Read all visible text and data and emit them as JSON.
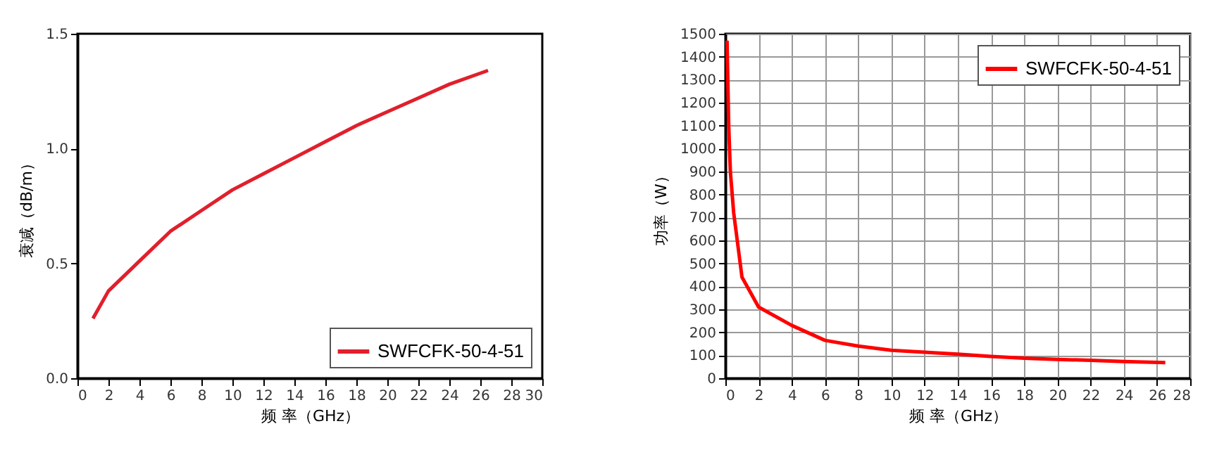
{
  "chart_data": [
    {
      "type": "line",
      "xlabel": "频 率（GHz）",
      "ylabel": "衰减（dB/m）",
      "xlim": [
        0,
        30
      ],
      "xticks": [
        0,
        2,
        4,
        6,
        8,
        10,
        12,
        14,
        16,
        18,
        20,
        22,
        24,
        26,
        28,
        30
      ],
      "ylim": [
        0,
        1.5
      ],
      "yticks": [
        {
          "value": 0,
          "label": "0.0"
        },
        {
          "value": 0.5,
          "label": "0.5"
        },
        {
          "value": 1,
          "label": "1.0"
        },
        {
          "value": 1.5,
          "label": "1.5"
        }
      ],
      "grid": false,
      "legend": "bottom right",
      "line_style": "solid",
      "marker": "none",
      "series": [
        {
          "name": "SWFCFK-50-4-51",
          "color": "#e0202c",
          "x": [
            1,
            2,
            4,
            6,
            8,
            10,
            12,
            14,
            16,
            18,
            20,
            22,
            24,
            26.5
          ],
          "values": [
            0.26,
            0.38,
            0.51,
            0.64,
            0.73,
            0.82,
            0.89,
            0.96,
            1.03,
            1.1,
            1.16,
            1.22,
            1.28,
            1.34
          ]
        }
      ]
    },
    {
      "type": "line",
      "xlabel": "频 率（GHz）",
      "ylabel": "功率（W）",
      "xlim": [
        0,
        28
      ],
      "xticks": [
        0,
        2,
        4,
        6,
        8,
        10,
        12,
        14,
        16,
        18,
        20,
        22,
        24,
        26,
        28
      ],
      "ylim": [
        0,
        1500
      ],
      "yticks": [
        0,
        100,
        200,
        300,
        400,
        500,
        600,
        700,
        800,
        900,
        1000,
        1100,
        1200,
        1300,
        1400,
        1500
      ],
      "grid": true,
      "legend": "top right",
      "line_style": "solid",
      "marker": "none",
      "series": [
        {
          "name": "SWFCFK-50-4-51",
          "color": "#ff0000",
          "x": [
            0.1,
            0.2,
            0.3,
            0.5,
            1,
            2,
            4,
            6,
            8,
            10,
            12,
            14,
            16,
            18,
            20,
            22,
            24,
            26.5
          ],
          "values": [
            1470,
            1100,
            900,
            720,
            440,
            310,
            230,
            165,
            140,
            122,
            113,
            105,
            95,
            87,
            82,
            78,
            73,
            68
          ]
        }
      ]
    }
  ]
}
